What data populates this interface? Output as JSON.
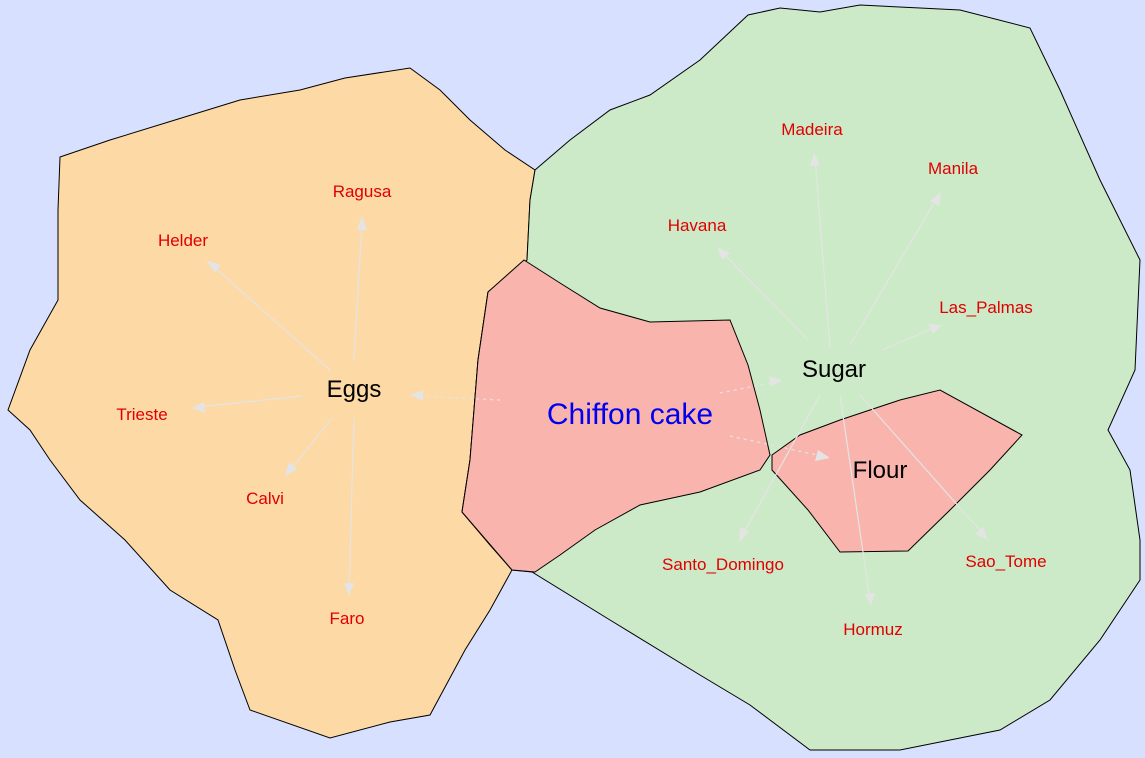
{
  "colors": {
    "background": "#d8e0ff",
    "eggs_region": "#fdd9a6",
    "sugar_region": "#cdeac8",
    "core_region": "#f9b5ad",
    "hub_text": "#000000",
    "leaf_text": "#e00000",
    "center_text": "#0000ee",
    "edge": "#e4e4e4"
  },
  "center": {
    "label": "Chiffon cake"
  },
  "hubs": {
    "eggs": "Eggs",
    "sugar": "Sugar",
    "flour": "Flour"
  },
  "leaves": {
    "eggs": [
      "Ragusa",
      "Helder",
      "Trieste",
      "Calvi",
      "Faro"
    ],
    "sugar": [
      "Madeira",
      "Manila",
      "Havana",
      "Las_Palmas",
      "Santo_Domingo",
      "Sao_Tome",
      "Hormuz"
    ]
  }
}
